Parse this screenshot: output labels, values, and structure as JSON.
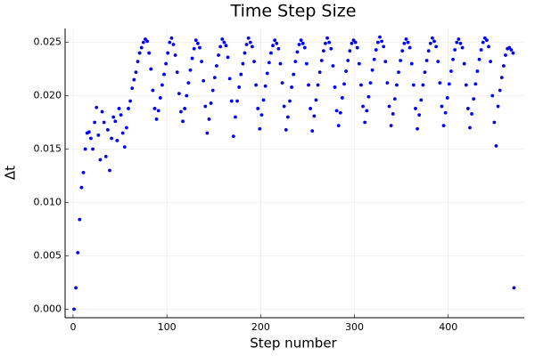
{
  "chart_data": {
    "type": "scatter",
    "title": "Time Step Size",
    "x_label": "Step number",
    "y_label": "Δt",
    "xlim": [
      -8.5,
      481
    ],
    "ylim": [
      -0.0008,
      0.0263
    ],
    "xticks": [
      0,
      100,
      200,
      300,
      400
    ],
    "yticks": [
      {
        "value": 0,
        "label": "0.000"
      },
      {
        "value": 0.005,
        "label": "0.005"
      },
      {
        "value": 0.01,
        "label": "0.010"
      },
      {
        "value": 0.015,
        "label": "0.015"
      },
      {
        "value": 0.02,
        "label": "0.020"
      },
      {
        "value": 0.025,
        "label": "0.025"
      }
    ],
    "grid": true,
    "series": [
      {
        "color": "#0000ff",
        "x": [
          1,
          3,
          5,
          7,
          9,
          11,
          13,
          15,
          17,
          19,
          21,
          23,
          25,
          27,
          29,
          31,
          33,
          35,
          37,
          39,
          41,
          43,
          45,
          47,
          49,
          51,
          53,
          55,
          57,
          59,
          61,
          63,
          65,
          67,
          69,
          71,
          73,
          75,
          77,
          79,
          81,
          83,
          85,
          87,
          89,
          91,
          93,
          95,
          97,
          99,
          101,
          103,
          105,
          107,
          109,
          111,
          113,
          115,
          117,
          119,
          121,
          123,
          125,
          127,
          129,
          131,
          133,
          135,
          137,
          139,
          141,
          143,
          145,
          147,
          149,
          151,
          153,
          155,
          157,
          159,
          161,
          163,
          165,
          167,
          169,
          171,
          173,
          175,
          177,
          179,
          181,
          183,
          185,
          187,
          189,
          191,
          193,
          195,
          197,
          199,
          201,
          203,
          205,
          207,
          209,
          211,
          213,
          215,
          217,
          219,
          221,
          223,
          225,
          227,
          229,
          231,
          233,
          235,
          237,
          239,
          241,
          243,
          245,
          247,
          249,
          251,
          253,
          255,
          257,
          259,
          261,
          263,
          265,
          267,
          269,
          271,
          273,
          275,
          277,
          279,
          281,
          283,
          285,
          287,
          289,
          291,
          293,
          295,
          297,
          299,
          301,
          303,
          305,
          307,
          309,
          311,
          313,
          315,
          317,
          319,
          321,
          323,
          325,
          327,
          329,
          331,
          333,
          335,
          337,
          339,
          341,
          343,
          345,
          347,
          349,
          351,
          353,
          355,
          357,
          359,
          361,
          363,
          365,
          367,
          369,
          371,
          373,
          375,
          377,
          379,
          381,
          383,
          385,
          387,
          389,
          391,
          393,
          395,
          397,
          399,
          401,
          403,
          405,
          407,
          409,
          411,
          413,
          415,
          417,
          419,
          421,
          423,
          425,
          427,
          429,
          431,
          433,
          435,
          437,
          439,
          441,
          443,
          445,
          447,
          449,
          451,
          453,
          455,
          457,
          459,
          461,
          463,
          465,
          467,
          469,
          470
        ],
        "values": [
          0.0,
          0.002,
          0.0053,
          0.0084,
          0.0114,
          0.0128,
          0.015,
          0.0165,
          0.0166,
          0.016,
          0.015,
          0.0175,
          0.0189,
          0.0163,
          0.014,
          0.0185,
          0.0175,
          0.0143,
          0.0168,
          0.013,
          0.016,
          0.018,
          0.0176,
          0.0158,
          0.0188,
          0.0182,
          0.0165,
          0.0152,
          0.017,
          0.0188,
          0.0195,
          0.0207,
          0.0215,
          0.0222,
          0.0232,
          0.024,
          0.0245,
          0.025,
          0.0253,
          0.0251,
          0.024,
          0.0225,
          0.0205,
          0.0188,
          0.0178,
          0.0186,
          0.0198,
          0.021,
          0.022,
          0.023,
          0.024,
          0.025,
          0.0254,
          0.0248,
          0.0238,
          0.0222,
          0.0202,
          0.0185,
          0.0176,
          0.0188,
          0.02,
          0.0212,
          0.0224,
          0.0235,
          0.0244,
          0.0252,
          0.0249,
          0.0245,
          0.0232,
          0.0214,
          0.019,
          0.0165,
          0.0178,
          0.0193,
          0.0205,
          0.0217,
          0.0228,
          0.0238,
          0.0246,
          0.0253,
          0.025,
          0.0247,
          0.0236,
          0.0216,
          0.0195,
          0.0162,
          0.018,
          0.0195,
          0.0208,
          0.022,
          0.023,
          0.024,
          0.0248,
          0.0254,
          0.025,
          0.0246,
          0.0232,
          0.021,
          0.0188,
          0.0169,
          0.0182,
          0.0196,
          0.0209,
          0.0221,
          0.0231,
          0.024,
          0.0247,
          0.0252,
          0.0249,
          0.0244,
          0.023,
          0.0212,
          0.019,
          0.0168,
          0.018,
          0.0195,
          0.0208,
          0.022,
          0.0232,
          0.0241,
          0.0248,
          0.0252,
          0.0249,
          0.0245,
          0.023,
          0.021,
          0.0188,
          0.0167,
          0.0181,
          0.0196,
          0.021,
          0.0222,
          0.0233,
          0.0242,
          0.0249,
          0.0254,
          0.025,
          0.0244,
          0.0228,
          0.0208,
          0.0186,
          0.0172,
          0.0184,
          0.0198,
          0.0211,
          0.0223,
          0.0233,
          0.0242,
          0.0249,
          0.0252,
          0.025,
          0.0245,
          0.023,
          0.021,
          0.019,
          0.0175,
          0.0186,
          0.0199,
          0.0212,
          0.0224,
          0.0234,
          0.0243,
          0.025,
          0.0255,
          0.0251,
          0.0246,
          0.0232,
          0.0212,
          0.019,
          0.0172,
          0.0183,
          0.0197,
          0.021,
          0.0222,
          0.0233,
          0.0242,
          0.0249,
          0.0253,
          0.025,
          0.0245,
          0.023,
          0.021,
          0.0188,
          0.0169,
          0.0182,
          0.0196,
          0.021,
          0.0222,
          0.0233,
          0.0242,
          0.0249,
          0.0254,
          0.0251,
          0.0246,
          0.0232,
          0.0212,
          0.019,
          0.0172,
          0.0184,
          0.0198,
          0.0211,
          0.0223,
          0.0234,
          0.0243,
          0.025,
          0.0253,
          0.0249,
          0.0245,
          0.023,
          0.021,
          0.0188,
          0.017,
          0.0183,
          0.0197,
          0.0211,
          0.0223,
          0.0234,
          0.0243,
          0.025,
          0.0254,
          0.0252,
          0.0246,
          0.0232,
          0.02,
          0.0175,
          0.0153,
          0.019,
          0.0205,
          0.0217,
          0.0228,
          0.0238,
          0.0244,
          0.0245,
          0.0243,
          0.024,
          0.002
        ]
      }
    ]
  }
}
